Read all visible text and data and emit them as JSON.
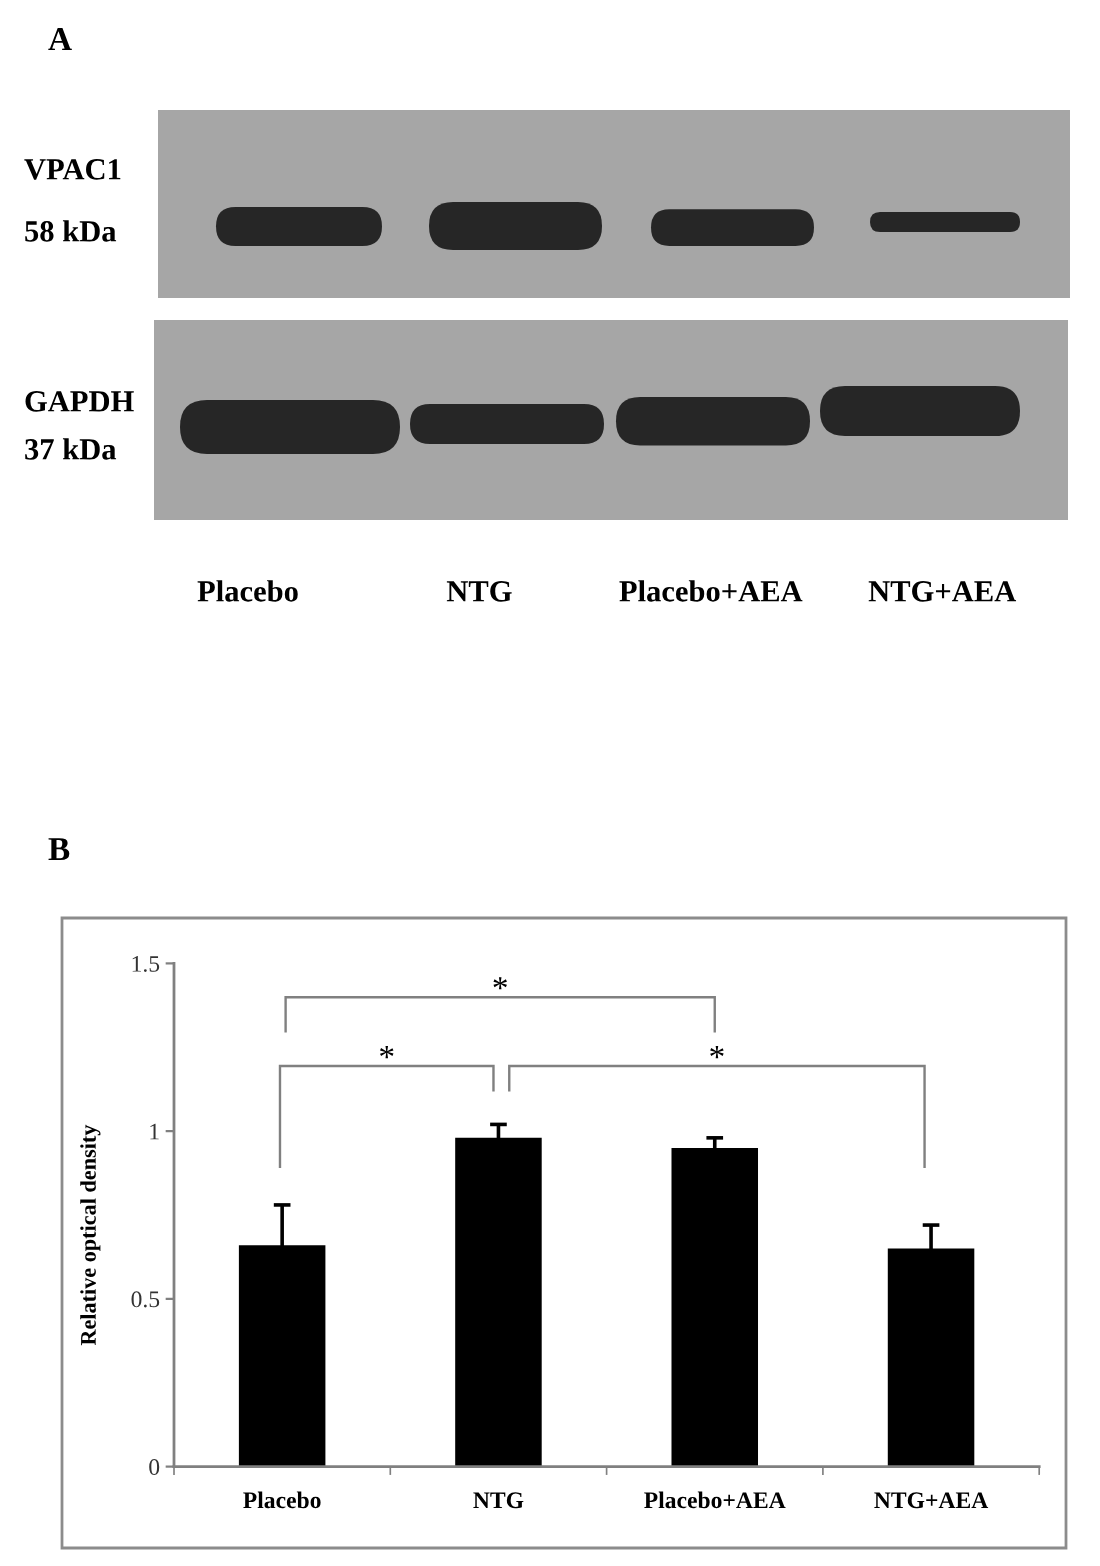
{
  "chart_data": [
    {
      "type": "other",
      "title": "A",
      "categories": [
        "Placebo",
        "NTG",
        "Placebo+AEA",
        "NTG+AEA"
      ],
      "annotations": [
        "VPAC1",
        "58 kDa",
        "GAPDH",
        "37 kDa"
      ]
    },
    {
      "type": "bar",
      "title": "B",
      "categories": [
        "Placebo",
        "NTG",
        "Placebo+AEA",
        "NTG+AEA"
      ],
      "values": [
        0.66,
        0.98,
        0.95,
        0.65
      ],
      "errors": [
        0.12,
        0.04,
        0.03,
        0.07
      ],
      "color": "#000000",
      "ylabel": "Relative optical density",
      "ylim": [
        0,
        1.5
      ],
      "yticks": [
        0,
        0.5,
        1,
        1.5
      ],
      "annotations": [
        "*",
        "*",
        "*"
      ]
    }
  ]
}
